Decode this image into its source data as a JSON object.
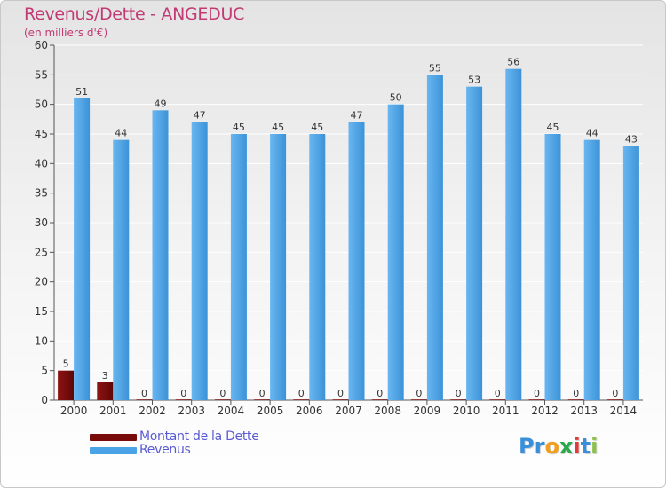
{
  "header": {
    "title": "Revenus/Dette - ANGEDUC",
    "subtitle": "(en milliers d'€)"
  },
  "legend": {
    "items": [
      {
        "label": "Montant de la Dette",
        "color": "#7a0b0b"
      },
      {
        "label": "Revenus",
        "color": "#4aa3e6"
      }
    ]
  },
  "logo": {
    "text": "Proxiti",
    "letter_colors": [
      "#3a8fd9",
      "#3a8fd9",
      "#f0a020",
      "#2aa84a",
      "#e03a3a",
      "#3a8fd9",
      "#8bc34a"
    ]
  },
  "chart_data": {
    "type": "bar",
    "categories": [
      "2000",
      "2001",
      "2002",
      "2003",
      "2004",
      "2005",
      "2006",
      "2007",
      "2008",
      "2009",
      "2010",
      "2011",
      "2012",
      "2013",
      "2014"
    ],
    "series": [
      {
        "name": "Montant de la Dette",
        "values": [
          5,
          3,
          0,
          0,
          0,
          0,
          0,
          0,
          0,
          0,
          0,
          0,
          0,
          0,
          0
        ],
        "color": "#7a0b0b"
      },
      {
        "name": "Revenus",
        "values": [
          51,
          44,
          49,
          47,
          45,
          45,
          45,
          47,
          50,
          55,
          53,
          56,
          45,
          44,
          43
        ],
        "color": "#4aa3e6"
      }
    ],
    "ylim": [
      0,
      60
    ],
    "yticks": [
      0,
      5,
      10,
      15,
      20,
      25,
      30,
      35,
      40,
      45,
      50,
      55,
      60
    ],
    "grid": true,
    "legend_position": "bottom-left"
  }
}
